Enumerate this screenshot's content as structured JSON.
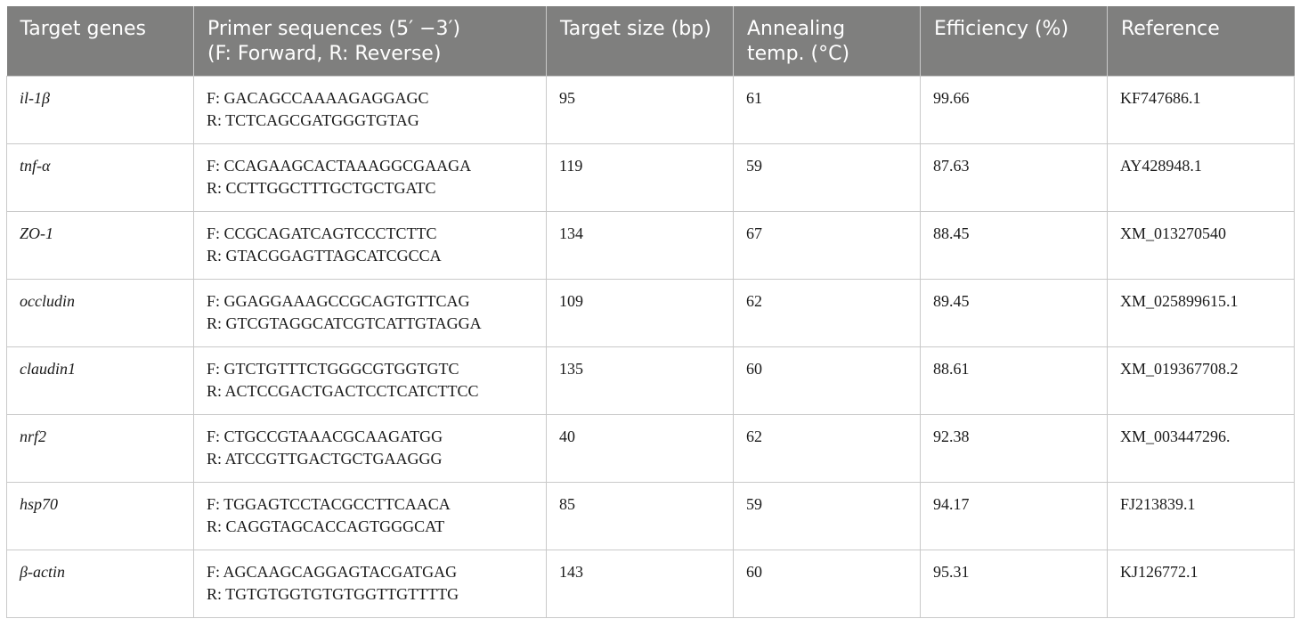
{
  "table": {
    "headers": [
      [
        "Target genes"
      ],
      [
        "Primer sequences (5′ −3′)",
        "(F: Forward, R: Reverse)"
      ],
      [
        "Target size (bp)"
      ],
      [
        "Annealing",
        "temp. (°C)"
      ],
      [
        "Efficiency (%)"
      ],
      [
        "Reference"
      ]
    ],
    "rows": [
      {
        "gene": "il-1β",
        "forward": "F: GACAGCCAAAAGAGGAGC",
        "reverse": "R: TCTCAGCGATGGGTGTAG",
        "size": "95",
        "temp": "61",
        "efficiency": "99.66",
        "reference": "KF747686.1"
      },
      {
        "gene": "tnf-α",
        "forward": "F: CCAGAAGCACTAAAGGCGAAGA",
        "reverse": "R: CCTTGGCTTTGCTGCTGATC",
        "size": "119",
        "temp": "59",
        "efficiency": "87.63",
        "reference": "AY428948.1"
      },
      {
        "gene": "ZO-1",
        "forward": "F: CCGCAGATCAGTCCCTCTTC",
        "reverse": "R: GTACGGAGTTAGCATCGCCA",
        "size": "134",
        "temp": "67",
        "efficiency": "88.45",
        "reference": "XM_013270540"
      },
      {
        "gene": "occludin",
        "forward": "F: GGAGGAAAGCCGCAGTGTTCAG",
        "reverse": "R: GTCGTAGGCATCGTCATTGTAGGA",
        "size": "109",
        "temp": "62",
        "efficiency": "89.45",
        "reference": "XM_025899615.1"
      },
      {
        "gene": "claudin1",
        "forward": "F: GTCTGTTTCTGGGCGTGGTGTC",
        "reverse": "R: ACTCCGACTGACTCCTCATCTTCC",
        "size": "135",
        "temp": "60",
        "efficiency": "88.61",
        "reference": "XM_019367708.2"
      },
      {
        "gene": "nrf2",
        "forward": "F: CTGCCGTAAACGCAAGATGG",
        "reverse": "R: ATCCGTTGACTGCTGAAGGG",
        "size": "40",
        "temp": "62",
        "efficiency": "92.38",
        "reference": "XM_003447296."
      },
      {
        "gene": "hsp70",
        "forward": "F: TGGAGTCCTACGCCTTCAACA",
        "reverse": "R: CAGGTAGCACCAGTGGGCAT",
        "size": "85",
        "temp": "59",
        "efficiency": "94.17",
        "reference": "FJ213839.1"
      },
      {
        "gene": "β-actin",
        "forward": "F: AGCAAGCAGGAGTACGATGAG",
        "reverse": "R: TGTGTGGTGTGTGGTTGTTTTG",
        "size": "143",
        "temp": "60",
        "efficiency": "95.31",
        "reference": "KJ126772.1"
      }
    ]
  }
}
